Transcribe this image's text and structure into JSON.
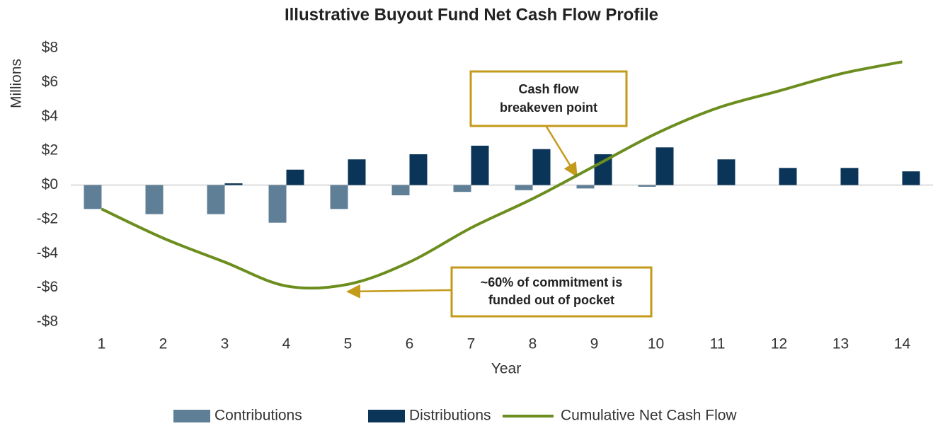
{
  "chart_data": {
    "type": "bar_line",
    "title": "Illustrative Buyout Fund Net Cash Flow Profile",
    "x_label": "Year",
    "y_label": "Millions",
    "categories": [
      "1",
      "2",
      "3",
      "4",
      "5",
      "6",
      "7",
      "8",
      "9",
      "10",
      "11",
      "12",
      "13",
      "14"
    ],
    "series": [
      {
        "name": "Contributions",
        "type": "bar",
        "color": "#5f7f96",
        "values": [
          -1.4,
          -1.7,
          -1.7,
          -2.2,
          -1.4,
          -0.6,
          -0.4,
          -0.3,
          -0.2,
          -0.1,
          0,
          0,
          0,
          0
        ]
      },
      {
        "name": "Distributions",
        "type": "bar",
        "color": "#0b3558",
        "values": [
          0,
          0,
          0.1,
          0.9,
          1.5,
          1.8,
          2.3,
          2.1,
          1.8,
          2.2,
          1.5,
          1.0,
          1.0,
          0.8
        ]
      },
      {
        "name": "Cumulative Net Cash Flow",
        "type": "line",
        "color": "#6b8e1e",
        "values": [
          -1.4,
          -3.1,
          -4.5,
          -5.9,
          -5.8,
          -4.5,
          -2.5,
          -0.8,
          1.1,
          3.0,
          4.5,
          5.5,
          6.5,
          7.2
        ]
      }
    ],
    "ylim": [
      -8,
      8
    ],
    "yticks": [
      {
        "value": -8,
        "label": "-$8"
      },
      {
        "value": -6,
        "label": "-$6"
      },
      {
        "value": -4,
        "label": "-$4"
      },
      {
        "value": -2,
        "label": "-$2"
      },
      {
        "value": 0,
        "label": "$0"
      },
      {
        "value": 2,
        "label": "$2"
      },
      {
        "value": 4,
        "label": "$4"
      },
      {
        "value": 6,
        "label": "$6"
      },
      {
        "value": 8,
        "label": "$8"
      }
    ],
    "annotations": [
      {
        "lines": [
          "Cash flow",
          "breakeven point"
        ]
      },
      {
        "lines": [
          "~60% of commitment is",
          "funded out of pocket"
        ]
      }
    ],
    "legend_position": "bottom"
  }
}
